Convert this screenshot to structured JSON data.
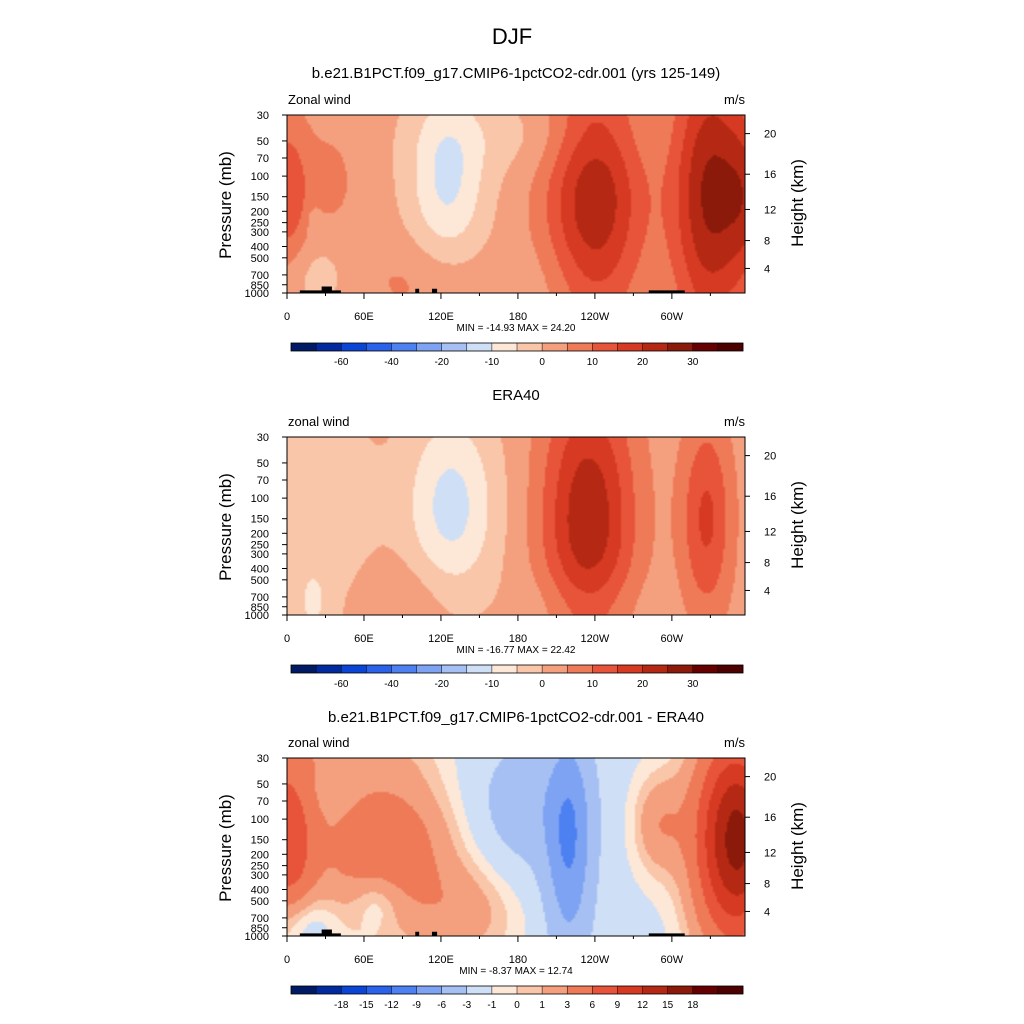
{
  "figure": {
    "title": "DJF"
  },
  "chart_data": [
    {
      "type": "heatmap",
      "title": "b.e21.B1PCT.f09_g17.CMIP6-1pctCO2-cdr.001 (yrs 125-149)",
      "left_label": "Zonal wind",
      "units": "m/s",
      "ylabel": "Pressure (mb)",
      "y2label": "Height (km)",
      "x_ticks": [
        "0",
        "60E",
        "120E",
        "180",
        "120W",
        "60W"
      ],
      "x_values": [
        0,
        60,
        120,
        180,
        240,
        300
      ],
      "xlim": [
        0,
        357
      ],
      "y_ticks": [
        "30",
        "50",
        "70",
        "100",
        "150",
        "200",
        "250",
        "300",
        "400",
        "500",
        "700",
        "850",
        "1000"
      ],
      "y_values": [
        30,
        50,
        70,
        100,
        150,
        200,
        250,
        300,
        400,
        500,
        700,
        850,
        1000
      ],
      "ylim": [
        30,
        1000
      ],
      "y2_ticks": [
        "20",
        "16",
        "12",
        "8",
        "4"
      ],
      "y2_values": [
        20,
        16,
        12,
        8,
        4
      ],
      "stats": "MIN = -14.93  MAX =  24.20",
      "min": -14.93,
      "max": 24.2,
      "contour_levels": [
        -70,
        -60,
        -50,
        -40,
        -30,
        -20,
        -15,
        -10,
        -5,
        0,
        5,
        10,
        15,
        20,
        25,
        30,
        35
      ],
      "colorbar_labels": [
        "-60",
        "-40",
        "-20",
        "-10",
        "0",
        "10",
        "20",
        "30"
      ],
      "colorbar_label_index": [
        1,
        3,
        5,
        7,
        9,
        11,
        13,
        15
      ],
      "background_value": 2,
      "features": [
        {
          "lon": 0,
          "p": 150,
          "wlon": 18,
          "wlev": 1.6,
          "amp": 12
        },
        {
          "lon": 35,
          "p": 110,
          "wlon": 22,
          "wlev": 1.2,
          "amp": 4
        },
        {
          "lon": 125,
          "p": 110,
          "wlon": 30,
          "wlev": 1.8,
          "amp": -13
        },
        {
          "lon": 240,
          "p": 155,
          "wlon": 38,
          "wlev": 2.6,
          "amp": 22
        },
        {
          "lon": 330,
          "p": 140,
          "wlon": 30,
          "wlev": 2.8,
          "amp": 24
        },
        {
          "lon": 360,
          "p": 150,
          "wlon": 18,
          "wlev": 1.6,
          "amp": 12
        },
        {
          "lon": 115,
          "p": 780,
          "wlon": 60,
          "wlev": 0.9,
          "amp": 5
        },
        {
          "lon": 20,
          "p": 700,
          "wlon": 30,
          "wlev": 0.8,
          "amp": -5
        },
        {
          "lon": 200,
          "p": 850,
          "wlon": 60,
          "wlev": 0.9,
          "amp": -3
        },
        {
          "lon": 200,
          "p": 45,
          "wlon": 80,
          "wlev": 0.8,
          "amp": -4
        },
        {
          "lon": 20,
          "p": 230,
          "wlon": 6,
          "wlev": 0.3,
          "amp": -3
        }
      ],
      "topography": [
        {
          "lon0": 10,
          "lon1": 42,
          "p": 950
        },
        {
          "lon0": 27,
          "lon1": 35,
          "p": 880
        },
        {
          "lon0": 100,
          "lon1": 103,
          "p": 920
        },
        {
          "lon0": 113,
          "lon1": 117,
          "p": 920
        },
        {
          "lon0": 282,
          "lon1": 310,
          "p": 950
        }
      ]
    },
    {
      "type": "heatmap",
      "title": "ERA40",
      "left_label": "zonal wind",
      "units": "m/s",
      "ylabel": "Pressure (mb)",
      "y2label": "Height (km)",
      "x_ticks": [
        "0",
        "60E",
        "120E",
        "180",
        "120W",
        "60W"
      ],
      "x_values": [
        0,
        60,
        120,
        180,
        240,
        300
      ],
      "xlim": [
        0,
        357
      ],
      "y_ticks": [
        "30",
        "50",
        "70",
        "100",
        "150",
        "200",
        "250",
        "300",
        "400",
        "500",
        "700",
        "850",
        "1000"
      ],
      "y_values": [
        30,
        50,
        70,
        100,
        150,
        200,
        250,
        300,
        400,
        500,
        700,
        850,
        1000
      ],
      "ylim": [
        30,
        1000
      ],
      "y2_ticks": [
        "20",
        "16",
        "12",
        "8",
        "4"
      ],
      "y2_values": [
        20,
        16,
        12,
        8,
        4
      ],
      "stats": "MIN = -16.77  MAX =  22.42",
      "min": -16.77,
      "max": 22.42,
      "contour_levels": [
        -70,
        -60,
        -50,
        -40,
        -30,
        -20,
        -15,
        -10,
        -5,
        0,
        5,
        10,
        15,
        20,
        25,
        30,
        35
      ],
      "colorbar_labels": [
        "-60",
        "-40",
        "-20",
        "-10",
        "0",
        "10",
        "20",
        "30"
      ],
      "colorbar_label_index": [
        1,
        3,
        5,
        7,
        9,
        11,
        13,
        15
      ],
      "background_value": 2,
      "features": [
        {
          "lon": 128,
          "p": 120,
          "wlon": 35,
          "wlev": 1.9,
          "amp": -14
        },
        {
          "lon": 30,
          "p": 200,
          "wlon": 40,
          "wlev": 2.6,
          "amp": -6
        },
        {
          "lon": 235,
          "p": 160,
          "wlon": 36,
          "wlev": 2.8,
          "amp": 22
        },
        {
          "lon": 327,
          "p": 150,
          "wlon": 20,
          "wlev": 2.0,
          "amp": 14
        },
        {
          "lon": 90,
          "p": 750,
          "wlon": 55,
          "wlev": 0.9,
          "amp": 4
        },
        {
          "lon": 230,
          "p": 900,
          "wlon": 50,
          "wlev": 0.8,
          "amp": -5
        },
        {
          "lon": 20,
          "p": 800,
          "wlon": 12,
          "wlev": 0.6,
          "amp": -5
        }
      ],
      "topography": []
    },
    {
      "type": "heatmap",
      "title": "b.e21.B1PCT.f09_g17.CMIP6-1pctCO2-cdr.001 - ERA40",
      "left_label": "zonal wind",
      "units": "m/s",
      "ylabel": "Pressure (mb)",
      "y2label": "Height (km)",
      "x_ticks": [
        "0",
        "60E",
        "120E",
        "180",
        "120W",
        "60W"
      ],
      "x_values": [
        0,
        60,
        120,
        180,
        240,
        300
      ],
      "xlim": [
        0,
        357
      ],
      "y_ticks": [
        "30",
        "50",
        "70",
        "100",
        "150",
        "200",
        "250",
        "300",
        "400",
        "500",
        "700",
        "850",
        "1000"
      ],
      "y_values": [
        30,
        50,
        70,
        100,
        150,
        200,
        250,
        300,
        400,
        500,
        700,
        850,
        1000
      ],
      "ylim": [
        30,
        1000
      ],
      "y2_ticks": [
        "20",
        "16",
        "12",
        "8",
        "4"
      ],
      "y2_values": [
        20,
        16,
        12,
        8,
        4
      ],
      "stats": "MIN = -8.37  MAX =  12.74",
      "min": -8.37,
      "max": 12.74,
      "contour_levels": [
        -21,
        -18,
        -15,
        -12,
        -9,
        -6,
        -3,
        -1,
        0,
        1,
        3,
        6,
        9,
        12,
        15,
        18,
        21
      ],
      "colorbar_labels": [
        "-18",
        "-15",
        "-12",
        "-9",
        "-6",
        "-3",
        "-1",
        "0",
        "1",
        "3",
        "6",
        "9",
        "12",
        "15",
        "18"
      ],
      "colorbar_label_index": [
        1,
        2,
        3,
        4,
        5,
        6,
        7,
        8,
        9,
        10,
        11,
        12,
        13,
        14,
        15
      ],
      "background_value": -1.5,
      "features": [
        {
          "lon": 0,
          "p": 150,
          "wlon": 22,
          "wlev": 1.9,
          "amp": 9
        },
        {
          "lon": 75,
          "p": 180,
          "wlon": 55,
          "wlev": 1.6,
          "amp": 7
        },
        {
          "lon": 220,
          "p": 170,
          "wlon": 18,
          "wlev": 2.2,
          "amp": -7
        },
        {
          "lon": 185,
          "p": 80,
          "wlon": 45,
          "wlev": 1.4,
          "amp": -3
        },
        {
          "lon": 340,
          "p": 150,
          "wlon": 28,
          "wlev": 2.2,
          "amp": 12
        },
        {
          "lon": 360,
          "p": 150,
          "wlon": 22,
          "wlev": 1.9,
          "amp": 9
        },
        {
          "lon": 290,
          "p": 110,
          "wlon": 20,
          "wlev": 1.0,
          "amp": 4
        },
        {
          "lon": 40,
          "p": 30,
          "wlon": 60,
          "wlev": 0.5,
          "amp": 2
        },
        {
          "lon": 140,
          "p": 650,
          "wlon": 40,
          "wlev": 1.0,
          "amp": 3
        },
        {
          "lon": 70,
          "p": 500,
          "wlon": 20,
          "wlev": 0.6,
          "amp": -3
        },
        {
          "lon": 10,
          "p": 780,
          "wlon": 25,
          "wlev": 0.6,
          "amp": -3
        }
      ],
      "topography": [
        {
          "lon0": 10,
          "lon1": 42,
          "p": 950
        },
        {
          "lon0": 27,
          "lon1": 35,
          "p": 880
        },
        {
          "lon0": 100,
          "lon1": 103,
          "p": 920
        },
        {
          "lon0": 113,
          "lon1": 117,
          "p": 920
        },
        {
          "lon0": 282,
          "lon1": 310,
          "p": 950
        }
      ]
    }
  ],
  "colors": {
    "fill": [
      "#001a66",
      "#002a9e",
      "#0a45d6",
      "#2a62ea",
      "#4d80f0",
      "#7ea3f3",
      "#a6c0f4",
      "#cfdff6",
      "#fde8d8",
      "#f9c6a9",
      "#f4a07e",
      "#ef7a58",
      "#e8543a",
      "#d63a22",
      "#b52914",
      "#8c1a0b",
      "#660000",
      "#4d0000"
    ]
  }
}
